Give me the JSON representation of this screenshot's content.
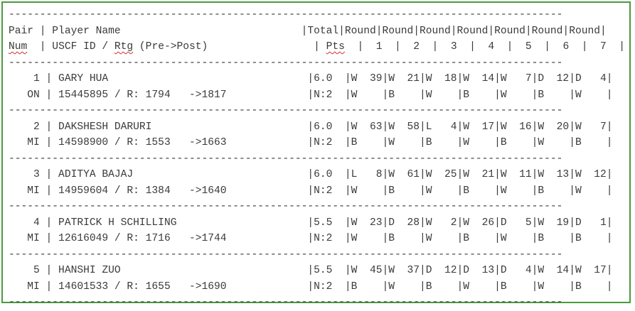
{
  "separator": "-----------------------------------------------------------------------------------------",
  "header": {
    "line1": "Pair | Player Name                             |Total|Round|Round|Round|Round|Round|Round|Round|",
    "line2_a": "Num",
    "line2_b": "  | USCF ID / ",
    "line2_c": "Rtg",
    "line2_d": " (Pre->Post)                 | ",
    "line2_e": "Pts",
    "line2_f": "  |  1  |  2  |  3  |  4  |  5  |  6  |  7  |"
  },
  "players": [
    {
      "line1": "    1 | GARY HUA                                |6.0  |W  39|W  21|W  18|W  14|W   7|D  12|D   4|",
      "line2": "   ON | 15445895 / R: 1794   ->1817             |N:2  |W    |B    |W    |B    |W    |B    |W    |"
    },
    {
      "line1": "    2 | DAKSHESH DARURI                         |6.0  |W  63|W  58|L   4|W  17|W  16|W  20|W   7|",
      "line2": "   MI | 14598900 / R: 1553   ->1663             |N:2  |B    |W    |B    |W    |B    |W    |B    |"
    },
    {
      "line1": "    3 | ADITYA BAJAJ                            |6.0  |L   8|W  61|W  25|W  21|W  11|W  13|W  12|",
      "line2": "   MI | 14959604 / R: 1384   ->1640             |N:2  |W    |B    |W    |B    |W    |B    |W    |"
    },
    {
      "line1": "    4 | PATRICK H SCHILLING                     |5.5  |W  23|D  28|W   2|W  26|D   5|W  19|D   1|",
      "line2": "   MI | 12616049 / R: 1716   ->1744             |N:2  |W    |B    |W    |B    |W    |B    |B    |"
    },
    {
      "line1": "    5 | HANSHI ZUO                              |5.5  |W  45|W  37|D  12|D  13|D   4|W  14|W  17|",
      "line2": "   MI | 14601533 / R: 1655   ->1690             |N:2  |B    |W    |B    |W    |B    |W    |B    |"
    }
  ]
}
